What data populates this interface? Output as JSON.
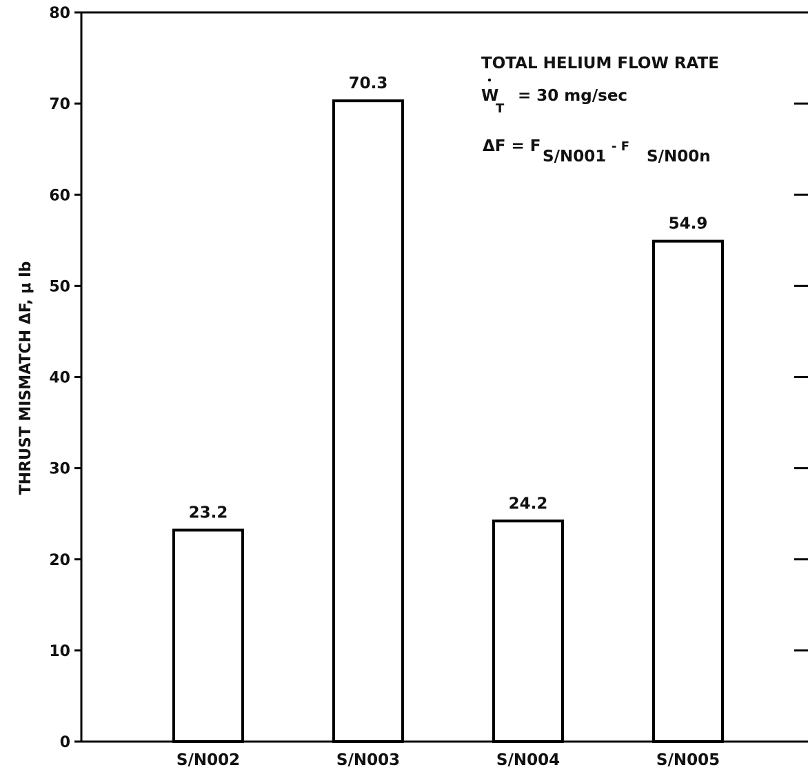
{
  "chart_data": {
    "type": "bar",
    "categories": [
      "S/N002",
      "S/N003",
      "S/N004",
      "S/N005"
    ],
    "values": [
      23.2,
      70.3,
      24.2,
      54.9
    ],
    "value_labels": [
      "23.2",
      "70.3",
      "24.2",
      "54.9"
    ],
    "title": "",
    "xlabel": "",
    "ylabel": "THRUST MISMATCH ΔF, μ lb",
    "ylim": [
      0,
      80
    ],
    "yticks": [
      0,
      10,
      20,
      30,
      40,
      50,
      60,
      70,
      80
    ],
    "grid": false,
    "legend": "none",
    "bar_fill": "#ffffff",
    "bar_stroke": "#000000",
    "annotations": {
      "line1": "TOTAL HELIUM FLOW RATE",
      "w_symbol": "W",
      "w_subscript": "T",
      "w_value": "= 30 mg/sec",
      "delta_lhs": "ΔF = F",
      "sub1": "S/N001",
      "minus": "- F",
      "sub2": "S/N00n"
    }
  }
}
